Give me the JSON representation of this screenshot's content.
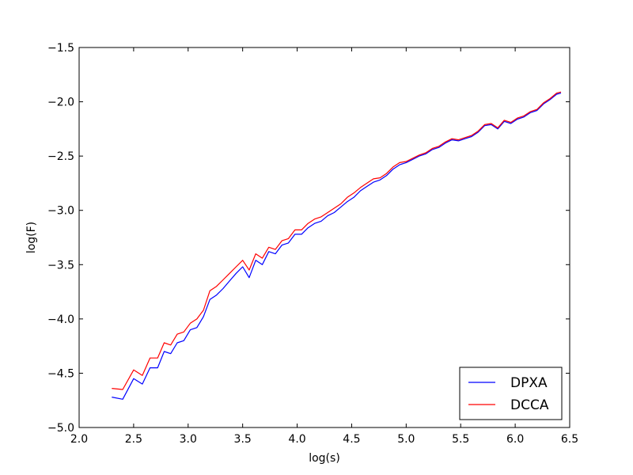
{
  "chart_data": {
    "type": "line",
    "title": "",
    "xlabel": "log(s)",
    "ylabel": "log(F)",
    "xlim": [
      2.0,
      6.5
    ],
    "ylim": [
      -5.0,
      -1.5
    ],
    "xticks": [
      2.0,
      2.5,
      3.0,
      3.5,
      4.0,
      4.5,
      5.0,
      5.5,
      6.0,
      6.5
    ],
    "yticks": [
      -5.0,
      -4.5,
      -4.0,
      -3.5,
      -3.0,
      -2.5,
      -2.0,
      -1.5
    ],
    "xtick_labels": [
      "2.0",
      "2.5",
      "3.0",
      "3.5",
      "4.0",
      "4.5",
      "5.0",
      "5.5",
      "6.0",
      "6.5"
    ],
    "ytick_labels": [
      "−5.0",
      "−4.5",
      "−4.0",
      "−3.5",
      "−3.0",
      "−2.5",
      "−2.0",
      "−1.5"
    ],
    "grid": false,
    "legend_position": "bottom-right",
    "series": [
      {
        "name": "DPXA",
        "color": "#0000ff",
        "x": [
          2.3,
          2.4,
          2.5,
          2.58,
          2.65,
          2.72,
          2.78,
          2.84,
          2.9,
          2.96,
          3.02,
          3.08,
          3.14,
          3.2,
          3.26,
          3.32,
          3.38,
          3.44,
          3.5,
          3.56,
          3.62,
          3.68,
          3.74,
          3.8,
          3.86,
          3.92,
          3.98,
          4.04,
          4.1,
          4.16,
          4.22,
          4.28,
          4.34,
          4.4,
          4.46,
          4.52,
          4.58,
          4.64,
          4.7,
          4.76,
          4.82,
          4.88,
          4.94,
          5.0,
          5.06,
          5.12,
          5.18,
          5.24,
          5.3,
          5.36,
          5.42,
          5.48,
          5.54,
          5.6,
          5.66,
          5.72,
          5.78,
          5.84,
          5.9,
          5.96,
          6.02,
          6.08,
          6.14,
          6.2,
          6.26,
          6.32,
          6.38,
          6.42
        ],
        "y": [
          -4.72,
          -4.74,
          -4.55,
          -4.6,
          -4.45,
          -4.45,
          -4.3,
          -4.32,
          -4.22,
          -4.2,
          -4.1,
          -4.08,
          -3.98,
          -3.82,
          -3.78,
          -3.72,
          -3.65,
          -3.58,
          -3.52,
          -3.62,
          -3.46,
          -3.5,
          -3.38,
          -3.4,
          -3.32,
          -3.3,
          -3.22,
          -3.22,
          -3.16,
          -3.12,
          -3.1,
          -3.05,
          -3.02,
          -2.97,
          -2.92,
          -2.88,
          -2.82,
          -2.78,
          -2.74,
          -2.72,
          -2.68,
          -2.62,
          -2.58,
          -2.56,
          -2.53,
          -2.5,
          -2.48,
          -2.44,
          -2.42,
          -2.38,
          -2.35,
          -2.36,
          -2.34,
          -2.32,
          -2.28,
          -2.22,
          -2.21,
          -2.25,
          -2.18,
          -2.2,
          -2.16,
          -2.14,
          -2.1,
          -2.08,
          -2.02,
          -1.98,
          -1.93,
          -1.92
        ]
      },
      {
        "name": "DCCA",
        "color": "#ff0000",
        "x": [
          2.3,
          2.4,
          2.5,
          2.58,
          2.65,
          2.72,
          2.78,
          2.84,
          2.9,
          2.96,
          3.02,
          3.08,
          3.14,
          3.2,
          3.26,
          3.32,
          3.38,
          3.44,
          3.5,
          3.56,
          3.62,
          3.68,
          3.74,
          3.8,
          3.86,
          3.92,
          3.98,
          4.04,
          4.1,
          4.16,
          4.22,
          4.28,
          4.34,
          4.4,
          4.46,
          4.52,
          4.58,
          4.64,
          4.7,
          4.76,
          4.82,
          4.88,
          4.94,
          5.0,
          5.06,
          5.12,
          5.18,
          5.24,
          5.3,
          5.36,
          5.42,
          5.48,
          5.54,
          5.6,
          5.66,
          5.72,
          5.78,
          5.84,
          5.9,
          5.96,
          6.02,
          6.08,
          6.14,
          6.2,
          6.26,
          6.32,
          6.38,
          6.42
        ],
        "y": [
          -4.64,
          -4.65,
          -4.47,
          -4.52,
          -4.36,
          -4.36,
          -4.22,
          -4.24,
          -4.14,
          -4.12,
          -4.04,
          -4.0,
          -3.92,
          -3.74,
          -3.7,
          -3.64,
          -3.58,
          -3.52,
          -3.46,
          -3.55,
          -3.4,
          -3.44,
          -3.34,
          -3.36,
          -3.28,
          -3.26,
          -3.18,
          -3.18,
          -3.12,
          -3.08,
          -3.06,
          -3.02,
          -2.98,
          -2.94,
          -2.88,
          -2.84,
          -2.79,
          -2.75,
          -2.71,
          -2.7,
          -2.66,
          -2.6,
          -2.56,
          -2.55,
          -2.52,
          -2.49,
          -2.47,
          -2.43,
          -2.41,
          -2.37,
          -2.34,
          -2.35,
          -2.33,
          -2.31,
          -2.27,
          -2.21,
          -2.2,
          -2.24,
          -2.17,
          -2.19,
          -2.15,
          -2.13,
          -2.09,
          -2.07,
          -2.01,
          -1.97,
          -1.92,
          -1.91
        ]
      }
    ]
  }
}
